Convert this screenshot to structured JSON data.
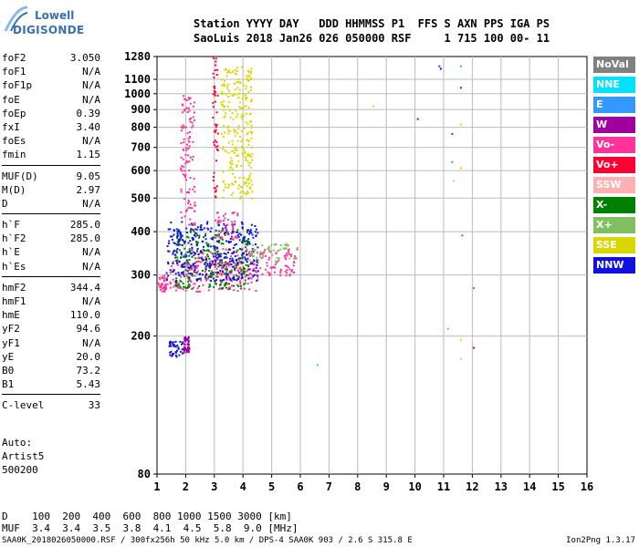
{
  "logo": {
    "line1": "Lowell",
    "line2": "DIGISONDE"
  },
  "header": {
    "row1": "Station YYYY DAY   DDD HHMMSS P1  FFS S AXN PPS IGA PS",
    "row2": "SaoLuis 2018 Jan26 026 050000 RSF     1 715 100 00- 11"
  },
  "params": [
    [
      [
        "foF2",
        "3.050"
      ],
      [
        "foF1",
        "N/A"
      ],
      [
        "foF1p",
        "N/A"
      ],
      [
        "foE",
        "N/A"
      ],
      [
        "foEp",
        "0.39"
      ],
      [
        "fxI",
        "3.40"
      ],
      [
        "foEs",
        "N/A"
      ],
      [
        "fmin",
        "1.15"
      ]
    ],
    [
      [
        "MUF(D)",
        "9.05"
      ],
      [
        "M(D)",
        "2.97"
      ],
      [
        "D",
        "N/A"
      ]
    ],
    [
      [
        "h`F",
        "285.0"
      ],
      [
        "h`F2",
        "285.0"
      ],
      [
        "h`E",
        "N/A"
      ],
      [
        "h`Es",
        "N/A"
      ]
    ],
    [
      [
        "hmF2",
        "344.4"
      ],
      [
        "hmF1",
        "N/A"
      ],
      [
        "hmE",
        "110.0"
      ],
      [
        "yF2",
        "94.6"
      ],
      [
        "yF1",
        "N/A"
      ],
      [
        "yE",
        "20.0"
      ],
      [
        "B0",
        "73.2"
      ],
      [
        "B1",
        "5.43"
      ]
    ],
    [
      [
        "C-level",
        "33"
      ]
    ]
  ],
  "auto": [
    "Auto:",
    "Artist5",
    "500200"
  ],
  "legend": [
    {
      "label": "NoVal",
      "bg": "#808080",
      "fg": "#ffffff"
    },
    {
      "label": "NNE",
      "bg": "#00e0ff",
      "fg": "#ffffff"
    },
    {
      "label": "E",
      "bg": "#3399ff",
      "fg": "#ffffff"
    },
    {
      "label": "W",
      "bg": "#a000a0",
      "fg": "#ffffff"
    },
    {
      "label": "Vo-",
      "bg": "#ff3399",
      "fg": "#ffffff"
    },
    {
      "label": "Vo+",
      "bg": "#ff0033",
      "fg": "#ffffff"
    },
    {
      "label": "SSW",
      "bg": "#ffb0b0",
      "fg": "#ffffff"
    },
    {
      "label": "X-",
      "bg": "#008000",
      "fg": "#ffffff"
    },
    {
      "label": "X+",
      "bg": "#80c060",
      "fg": "#ffffff"
    },
    {
      "label": "SSE",
      "bg": "#d8d800",
      "fg": "#ffffff"
    },
    {
      "label": "NNW",
      "bg": "#1010e0",
      "fg": "#ffffff"
    }
  ],
  "dmuf": {
    "row1": "D    100  200  400  600  800 1000 1500 3000 [km]",
    "row2": "MUF  3.4  3.4  3.5  3.8  4.1  4.5  5.8  9.0 [MHz]"
  },
  "footer": "SAA0K_2018026050000.RSF / 300fx256h 50 kHz 5.0 km / DPS-4 SAA0K 903 / 2.6 S 315.8 E",
  "version": "Ion2Png 1.3.17",
  "chart_data": {
    "type": "scatter",
    "title": "",
    "xlabel": "",
    "ylabel": "",
    "xlim": [
      1,
      16
    ],
    "ylim_log": [
      80,
      1280
    ],
    "x_ticks": [
      1,
      2,
      3,
      4,
      5,
      6,
      7,
      8,
      9,
      10,
      11,
      12,
      13,
      14,
      15,
      16
    ],
    "y_ticks": [
      80,
      200,
      300,
      400,
      500,
      600,
      700,
      800,
      900,
      1000,
      1100,
      1280
    ],
    "grid": true,
    "trace_segments": [
      {
        "color": "#ff3399",
        "x_range": [
          1.0,
          1.35
        ],
        "y_range": [
          270,
          300
        ]
      },
      {
        "color": "#ff3399",
        "x_range": [
          1.4,
          4.5
        ],
        "y_range": [
          270,
          330
        ]
      },
      {
        "color": "#ff3399",
        "x_range": [
          2.0,
          5.9
        ],
        "y_range": [
          300,
          360
        ]
      },
      {
        "color": "#008000",
        "x_range": [
          1.6,
          4.2
        ],
        "y_range": [
          275,
          410
        ]
      },
      {
        "color": "#1010e0",
        "x_range": [
          1.3,
          4.5
        ],
        "y_range": [
          290,
          430
        ]
      },
      {
        "color": "#ff3399",
        "x_range": [
          3.0,
          3.8
        ],
        "y_range": [
          380,
          470
        ]
      },
      {
        "color": "#80c060",
        "x_range": [
          4.2,
          5.9
        ],
        "y_range": [
          330,
          370
        ]
      },
      {
        "color": "#d8d800",
        "x_range": [
          3.2,
          4.3
        ],
        "y_range": [
          500,
          1200
        ]
      },
      {
        "color": "#ff3399",
        "x_range": [
          1.8,
          2.3
        ],
        "y_range": [
          420,
          1000
        ]
      },
      {
        "color": "#ff0033",
        "x_range": [
          2.9,
          3.1
        ],
        "y_range": [
          500,
          1280
        ]
      },
      {
        "color": "#1010e0",
        "x_range": [
          1.4,
          1.9
        ],
        "y_range": [
          175,
          195
        ]
      },
      {
        "color": "#a000a0",
        "x_range": [
          1.9,
          2.1
        ],
        "y_range": [
          180,
          200
        ]
      }
    ],
    "scatter_points": [
      {
        "x": 11.6,
        "y": 1200,
        "color": "#3399ff"
      },
      {
        "x": 10.9,
        "y": 1180,
        "color": "#1010e0"
      },
      {
        "x": 10.85,
        "y": 1200,
        "color": "#a000a0"
      },
      {
        "x": 11.6,
        "y": 1040,
        "color": "#a000a0"
      },
      {
        "x": 8.55,
        "y": 920,
        "color": "#d8d800"
      },
      {
        "x": 10.1,
        "y": 845,
        "color": "#a000a0"
      },
      {
        "x": 11.6,
        "y": 815,
        "color": "#d8d800"
      },
      {
        "x": 11.3,
        "y": 765,
        "color": "#008000"
      },
      {
        "x": 11.3,
        "y": 635,
        "color": "#3399ff"
      },
      {
        "x": 11.6,
        "y": 610,
        "color": "#d8d800"
      },
      {
        "x": 11.35,
        "y": 560,
        "color": "#ffb0b0"
      },
      {
        "x": 11.65,
        "y": 390,
        "color": "#ff3399"
      },
      {
        "x": 12.05,
        "y": 275,
        "color": "#ff3399"
      },
      {
        "x": 11.15,
        "y": 210,
        "color": "#00e0ff"
      },
      {
        "x": 11.6,
        "y": 195,
        "color": "#d8d800"
      },
      {
        "x": 12.05,
        "y": 185,
        "color": "#a000a0"
      },
      {
        "x": 11.6,
        "y": 172,
        "color": "#ffb0b0"
      },
      {
        "x": 6.6,
        "y": 165,
        "color": "#00e0ff"
      }
    ]
  }
}
